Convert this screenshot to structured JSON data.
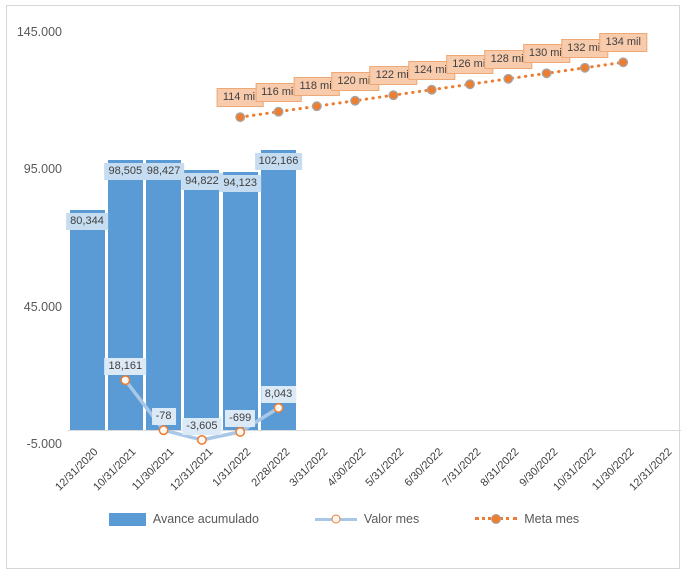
{
  "chart_data": {
    "type": "combo",
    "title": "",
    "categories": [
      "12/31/2020",
      "10/31/2021",
      "11/30/2021",
      "12/31/2021",
      "1/31/2022",
      "2/28/2022",
      "3/31/2022",
      "4/30/2022",
      "5/31/2022",
      "6/30/2022",
      "7/31/2022",
      "8/31/2022",
      "9/30/2022",
      "10/31/2022",
      "11/30/2022",
      "12/31/2022"
    ],
    "y_axis": {
      "min": -5000,
      "max": 145000,
      "tick_values": [
        145000,
        95000,
        45000,
        -5000
      ],
      "tick_labels": [
        "145.000",
        "95.000",
        "45.000",
        "-5.000"
      ],
      "gridlines": false
    },
    "series": [
      {
        "name": "Avance acumulado",
        "type": "bar",
        "start_category_index": 0,
        "values": [
          80344,
          98505,
          98427,
          94822,
          94123,
          102166
        ],
        "data_labels": [
          "80,344",
          "98,505",
          "98,427",
          "94,822",
          "94,123",
          "102,166"
        ],
        "color": "#5B9BD5",
        "label_bg": "#C5DCF1"
      },
      {
        "name": "Valor mes",
        "type": "line",
        "start_category_index": 1,
        "values": [
          18161,
          -78,
          -3605,
          -699,
          8043
        ],
        "data_labels": [
          "18,161",
          "-78",
          "-3,605",
          "-699",
          "8,043"
        ],
        "color": "#A9C8E8",
        "marker_fill": "#FDF8F4",
        "marker_stroke": "#ED7D31",
        "label_bg": "#DCE9F6"
      },
      {
        "name": "Meta mes",
        "type": "dotted_line",
        "start_category_index": 4,
        "values": [
          114000,
          116000,
          118000,
          120000,
          122000,
          124000,
          126000,
          128000,
          130000,
          132000,
          134000
        ],
        "data_labels": [
          "114 mil",
          "116 mil",
          "118 mil",
          "120 mil",
          "122 mil",
          "124 mil",
          "126 mil",
          "128 mil",
          "130 mil",
          "132 mil",
          "134 mil"
        ],
        "color": "#ED7D31",
        "marker_fill": "#ED7D31",
        "marker_stroke": "#A6A6A6",
        "label_bg": "#F8CBAD",
        "label_border": "#EEA876"
      }
    ],
    "legend": {
      "position": "bottom",
      "entries": [
        "Avance acumulado",
        "Valor mes",
        "Meta mes"
      ]
    }
  },
  "colors": {
    "text_dark": "#404040",
    "text_axis": "#595959",
    "axis_line": "#D9D9D9",
    "background": "#FFFFFF",
    "border": "#D6D6D6"
  }
}
